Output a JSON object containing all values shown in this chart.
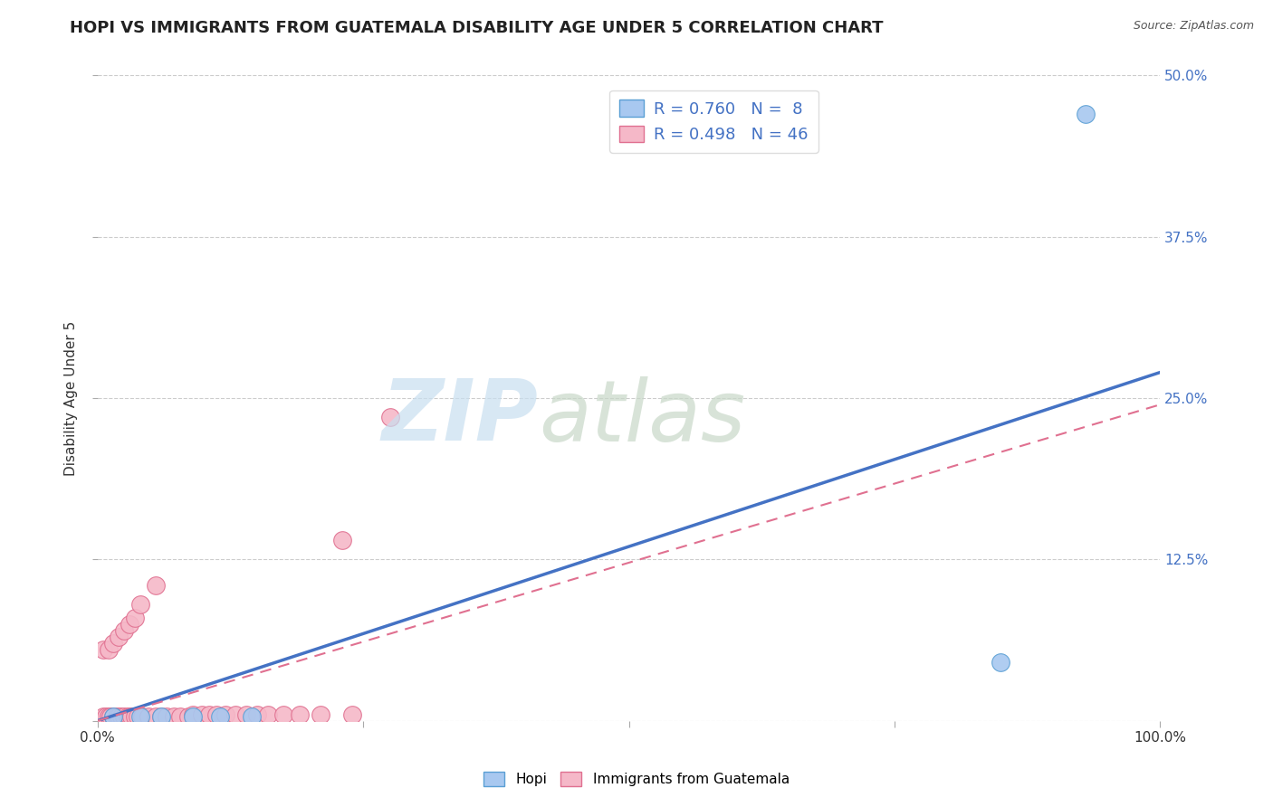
{
  "title": "HOPI VS IMMIGRANTS FROM GUATEMALA DISABILITY AGE UNDER 5 CORRELATION CHART",
  "source": "Source: ZipAtlas.com",
  "ylabel": "Disability Age Under 5",
  "xlim": [
    0,
    1.0
  ],
  "ylim": [
    0,
    0.5
  ],
  "xticks": [
    0.0,
    0.25,
    0.5,
    0.75,
    1.0
  ],
  "xtick_labels": [
    "0.0%",
    "",
    "",
    "",
    "100.0%"
  ],
  "ytick_labels": [
    "",
    "12.5%",
    "25.0%",
    "37.5%",
    "50.0%"
  ],
  "yticks": [
    0.0,
    0.125,
    0.25,
    0.375,
    0.5
  ],
  "hopi_color": "#a8c8f0",
  "hopi_edge_color": "#5a9fd4",
  "guatemala_color": "#f5b8c8",
  "guatemala_edge_color": "#e07090",
  "hopi_R": 0.76,
  "hopi_N": 8,
  "guatemala_R": 0.498,
  "guatemala_N": 46,
  "legend_text_color": "#4472c4",
  "right_tick_color": "#4472c4",
  "hopi_line_color": "#4472c4",
  "guatemala_line_color": "#e07090",
  "hopi_scatter_x": [
    0.015,
    0.04,
    0.06,
    0.09,
    0.115,
    0.145,
    0.85,
    0.93
  ],
  "hopi_scatter_y": [
    0.003,
    0.003,
    0.003,
    0.003,
    0.003,
    0.003,
    0.045,
    0.47
  ],
  "guatemala_scatter_x": [
    0.005,
    0.008,
    0.01,
    0.012,
    0.015,
    0.018,
    0.02,
    0.022,
    0.025,
    0.028,
    0.03,
    0.032,
    0.035,
    0.038,
    0.042,
    0.048,
    0.055,
    0.06,
    0.065,
    0.072,
    0.078,
    0.085,
    0.09,
    0.098,
    0.105,
    0.112,
    0.12,
    0.13,
    0.14,
    0.15,
    0.16,
    0.175,
    0.19,
    0.21,
    0.24,
    0.005,
    0.01,
    0.015,
    0.02,
    0.025,
    0.03,
    0.035,
    0.04,
    0.055,
    0.23,
    0.275
  ],
  "guatemala_scatter_y": [
    0.003,
    0.003,
    0.003,
    0.003,
    0.003,
    0.003,
    0.003,
    0.003,
    0.003,
    0.003,
    0.003,
    0.003,
    0.003,
    0.003,
    0.003,
    0.003,
    0.003,
    0.003,
    0.003,
    0.003,
    0.003,
    0.003,
    0.005,
    0.005,
    0.005,
    0.005,
    0.005,
    0.005,
    0.005,
    0.005,
    0.005,
    0.005,
    0.005,
    0.005,
    0.005,
    0.055,
    0.055,
    0.06,
    0.065,
    0.07,
    0.075,
    0.08,
    0.09,
    0.105,
    0.14,
    0.235
  ],
  "hopi_line_x0": 0.0,
  "hopi_line_x1": 1.0,
  "hopi_line_y0": 0.0,
  "hopi_line_y1": 0.27,
  "guatemala_line_x0": 0.0,
  "guatemala_line_x1": 1.0,
  "guatemala_line_y0": 0.0,
  "guatemala_line_y1": 0.245,
  "background_color": "#ffffff",
  "grid_color": "#cccccc",
  "title_fontsize": 13,
  "axis_label_fontsize": 11,
  "tick_fontsize": 11,
  "legend_fontsize": 13,
  "source_fontsize": 9
}
